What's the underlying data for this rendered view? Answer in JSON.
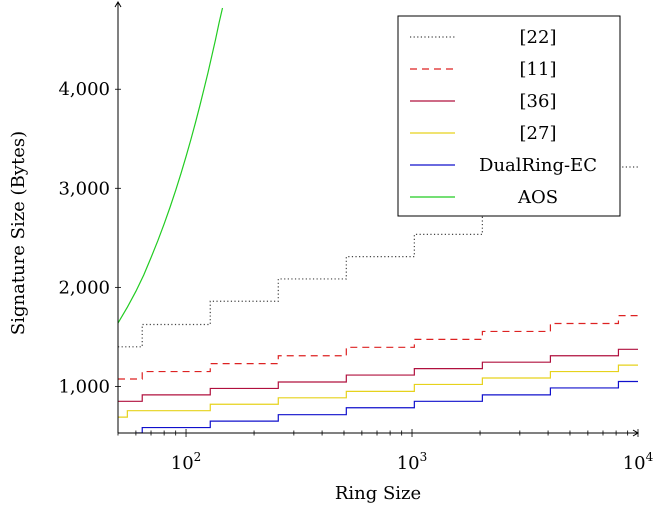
{
  "chart_data": {
    "type": "line",
    "xlabel": "Ring Size",
    "ylabel": "Signature Size (Bytes)",
    "xscale": "log",
    "xlim": [
      50,
      10000
    ],
    "ylim": [
      530,
      4820
    ],
    "x_ticks": [
      {
        "value": 100,
        "base": "10",
        "exp": "2"
      },
      {
        "value": 1000,
        "base": "10",
        "exp": "3"
      },
      {
        "value": 10000,
        "base": "10",
        "exp": "4"
      }
    ],
    "y_ticks": [
      {
        "value": 1000,
        "label": "1,000"
      },
      {
        "value": 2000,
        "label": "2,000"
      },
      {
        "value": 3000,
        "label": "3,000"
      },
      {
        "value": 4000,
        "label": "4,000"
      }
    ],
    "legend_position": "top-right",
    "series": [
      {
        "name": "[22]",
        "color": "#444444",
        "style": "dotted",
        "points": [
          [
            50,
            1400
          ],
          [
            64,
            1400
          ],
          [
            64,
            1625
          ],
          [
            128,
            1625
          ],
          [
            128,
            1860
          ],
          [
            256,
            1860
          ],
          [
            256,
            2085
          ],
          [
            512,
            2085
          ],
          [
            512,
            2310
          ],
          [
            1024,
            2310
          ],
          [
            1024,
            2535
          ],
          [
            2048,
            2535
          ],
          [
            2048,
            2760
          ],
          [
            4096,
            2760
          ],
          [
            4096,
            2990
          ],
          [
            8192,
            2990
          ],
          [
            8192,
            3215
          ],
          [
            10000,
            3215
          ]
        ]
      },
      {
        "name": "[11]",
        "color": "#dd2222",
        "style": "dashed",
        "points": [
          [
            50,
            1075
          ],
          [
            64,
            1075
          ],
          [
            64,
            1150
          ],
          [
            128,
            1150
          ],
          [
            128,
            1230
          ],
          [
            256,
            1230
          ],
          [
            256,
            1310
          ],
          [
            512,
            1310
          ],
          [
            512,
            1395
          ],
          [
            1024,
            1395
          ],
          [
            1024,
            1475
          ],
          [
            2048,
            1475
          ],
          [
            2048,
            1555
          ],
          [
            4096,
            1555
          ],
          [
            4096,
            1635
          ],
          [
            8192,
            1635
          ],
          [
            8192,
            1715
          ],
          [
            10000,
            1715
          ]
        ]
      },
      {
        "name": "[36]",
        "color": "#b0103e",
        "style": "solid",
        "points": [
          [
            50,
            850
          ],
          [
            64,
            850
          ],
          [
            64,
            915
          ],
          [
            128,
            915
          ],
          [
            128,
            980
          ],
          [
            256,
            980
          ],
          [
            256,
            1045
          ],
          [
            512,
            1045
          ],
          [
            512,
            1115
          ],
          [
            1024,
            1115
          ],
          [
            1024,
            1180
          ],
          [
            2048,
            1180
          ],
          [
            2048,
            1245
          ],
          [
            4096,
            1245
          ],
          [
            4096,
            1310
          ],
          [
            8192,
            1310
          ],
          [
            8192,
            1375
          ],
          [
            10000,
            1375
          ]
        ]
      },
      {
        "name": "[27]",
        "color": "#e6d21c",
        "style": "solid",
        "points": [
          [
            50,
            690
          ],
          [
            55,
            690
          ],
          [
            55,
            755
          ],
          [
            128,
            755
          ],
          [
            128,
            820
          ],
          [
            256,
            820
          ],
          [
            256,
            885
          ],
          [
            512,
            885
          ],
          [
            512,
            950
          ],
          [
            1024,
            950
          ],
          [
            1024,
            1020
          ],
          [
            2048,
            1020
          ],
          [
            2048,
            1085
          ],
          [
            4096,
            1085
          ],
          [
            4096,
            1150
          ],
          [
            8192,
            1150
          ],
          [
            8192,
            1215
          ],
          [
            10000,
            1215
          ]
        ]
      },
      {
        "name": "DualRing-EC",
        "color": "#1010cc",
        "style": "solid",
        "points": [
          [
            60,
            530
          ],
          [
            64,
            530
          ],
          [
            64,
            585
          ],
          [
            128,
            585
          ],
          [
            128,
            650
          ],
          [
            256,
            650
          ],
          [
            256,
            715
          ],
          [
            512,
            715
          ],
          [
            512,
            785
          ],
          [
            1024,
            785
          ],
          [
            1024,
            850
          ],
          [
            2048,
            850
          ],
          [
            2048,
            915
          ],
          [
            4096,
            915
          ],
          [
            4096,
            985
          ],
          [
            8192,
            985
          ],
          [
            8192,
            1050
          ],
          [
            10000,
            1050
          ]
        ]
      },
      {
        "name": "AOS",
        "color": "#22cc22",
        "style": "solid",
        "points": [
          [
            50,
            1640
          ],
          [
            55,
            1800
          ],
          [
            60,
            1960
          ],
          [
            65,
            2125
          ],
          [
            70,
            2300
          ],
          [
            75,
            2470
          ],
          [
            80,
            2640
          ],
          [
            85,
            2810
          ],
          [
            90,
            2980
          ],
          [
            95,
            3150
          ],
          [
            100,
            3320
          ],
          [
            105,
            3490
          ],
          [
            110,
            3660
          ],
          [
            115,
            3830
          ],
          [
            120,
            4000
          ],
          [
            125,
            4165
          ],
          [
            130,
            4335
          ],
          [
            135,
            4500
          ],
          [
            140,
            4670
          ],
          [
            145,
            4820
          ]
        ]
      }
    ]
  }
}
